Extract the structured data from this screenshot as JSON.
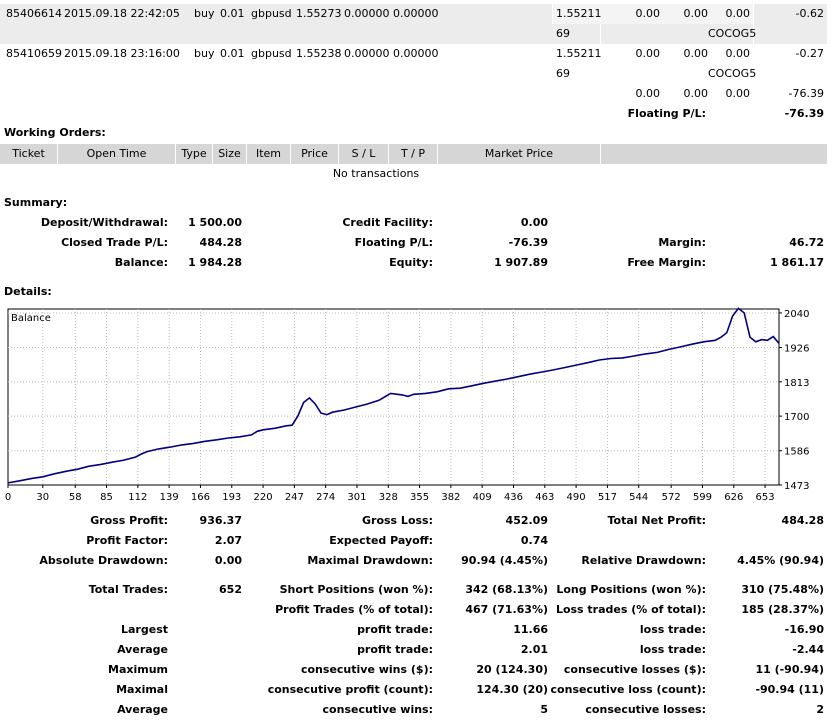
{
  "trades": [
    {
      "ticket": "85406614",
      "open_time": "2015.09.18 22:42:05",
      "type": "buy",
      "size": "0.01",
      "item": "gbpusd",
      "price": "1.55273",
      "sl": "0.00000",
      "tp": "0.00000",
      "market_price": "1.55211",
      "c1": "0.00",
      "c2": "0.00",
      "c3": "0.00",
      "profit": "-0.62",
      "sub_num": "69",
      "comment": "COCOG5"
    },
    {
      "ticket": "85410659",
      "open_time": "2015.09.18 23:16:00",
      "type": "buy",
      "size": "0.01",
      "item": "gbpusd",
      "price": "1.55238",
      "sl": "0.00000",
      "tp": "0.00000",
      "market_price": "1.55211",
      "c1": "0.00",
      "c2": "0.00",
      "c3": "0.00",
      "profit": "-0.27",
      "sub_num": "69",
      "comment": "COCOG5"
    }
  ],
  "totals_row": {
    "c1": "0.00",
    "c2": "0.00",
    "c3": "0.00",
    "profit": "-76.39"
  },
  "floating_row": {
    "label": "Floating P/L:",
    "value": "-76.39"
  },
  "working_orders": {
    "title": "Working Orders:",
    "headers": [
      "Ticket",
      "Open Time",
      "Type",
      "Size",
      "Item",
      "Price",
      "S / L",
      "T / P",
      "Market Price"
    ],
    "empty_text": "No transactions"
  },
  "summary": {
    "title": "Summary:",
    "deposit_label": "Deposit/Withdrawal:",
    "deposit_value": "1 500.00",
    "credit_label": "Credit Facility:",
    "credit_value": "0.00",
    "closed_label": "Closed Trade P/L:",
    "closed_value": "484.28",
    "floating_label": "Floating P/L:",
    "floating_value": "-76.39",
    "margin_label": "Margin:",
    "margin_value": "46.72",
    "balance_label": "Balance:",
    "balance_value": "1 984.28",
    "equity_label": "Equity:",
    "equity_value": "1 907.89",
    "free_margin_label": "Free Margin:",
    "free_margin_value": "1 861.17"
  },
  "details": {
    "title": "Details:"
  },
  "chart_data": {
    "type": "line",
    "title": "Balance",
    "x_ticks": [
      "0",
      "30",
      "58",
      "85",
      "112",
      "139",
      "166",
      "193",
      "220",
      "247",
      "274",
      "301",
      "328",
      "355",
      "382",
      "409",
      "436",
      "463",
      "490",
      "517",
      "544",
      "572",
      "599",
      "626",
      "653"
    ],
    "y_ticks": [
      "2040",
      "1926",
      "1813",
      "1700",
      "1586",
      "1473"
    ],
    "xlim": [
      0,
      665
    ],
    "ylim": [
      1473,
      2053
    ],
    "grid": true,
    "color": "#00007f",
    "series": [
      {
        "x": [
          0,
          10,
          20,
          30,
          40,
          50,
          60,
          70,
          80,
          90,
          100,
          110,
          115,
          120,
          130,
          140,
          150,
          160,
          170,
          180,
          190,
          200,
          210,
          215,
          220,
          230,
          240,
          245,
          250,
          255,
          260,
          265,
          270,
          275,
          280,
          290,
          300,
          310,
          320,
          330,
          340,
          345,
          350,
          360,
          370,
          380,
          390,
          400,
          410,
          420,
          430,
          440,
          450,
          460,
          470,
          480,
          490,
          500,
          510,
          520,
          530,
          540,
          550,
          560,
          570,
          580,
          590,
          600,
          610,
          615,
          620,
          625,
          630,
          635,
          640,
          645,
          650,
          655,
          660,
          665
        ],
        "y": [
          1480,
          1487,
          1494,
          1500,
          1510,
          1518,
          1525,
          1535,
          1541,
          1548,
          1555,
          1565,
          1575,
          1583,
          1592,
          1598,
          1605,
          1610,
          1617,
          1622,
          1628,
          1632,
          1638,
          1650,
          1655,
          1660,
          1668,
          1670,
          1700,
          1745,
          1760,
          1740,
          1710,
          1705,
          1713,
          1720,
          1730,
          1740,
          1752,
          1775,
          1770,
          1765,
          1772,
          1775,
          1780,
          1790,
          1792,
          1800,
          1808,
          1815,
          1822,
          1830,
          1838,
          1845,
          1852,
          1860,
          1868,
          1876,
          1885,
          1890,
          1892,
          1898,
          1905,
          1910,
          1920,
          1928,
          1937,
          1945,
          1950,
          1960,
          1975,
          2030,
          2055,
          2040,
          1960,
          1945,
          1952,
          1950,
          1962,
          1940
        ]
      }
    ]
  },
  "stats": {
    "gross_profit_label": "Gross Profit:",
    "gross_profit": "936.37",
    "gross_loss_label": "Gross Loss:",
    "gross_loss": "452.09",
    "net_profit_label": "Total Net Profit:",
    "net_profit": "484.28",
    "profit_factor_label": "Profit Factor:",
    "profit_factor": "2.07",
    "expected_payoff_label": "Expected Payoff:",
    "expected_payoff": "0.74",
    "abs_dd_label": "Absolute Drawdown:",
    "abs_dd": "0.00",
    "max_dd_label": "Maximal Drawdown:",
    "max_dd": "90.94 (4.45%)",
    "rel_dd_label": "Relative Drawdown:",
    "rel_dd": "4.45% (90.94)",
    "total_trades_label": "Total Trades:",
    "total_trades": "652",
    "short_label": "Short Positions (won %):",
    "short": "342 (68.13%)",
    "long_label": "Long Positions (won %):",
    "long": "310 (75.48%)",
    "profit_trades_label": "Profit Trades (% of total):",
    "profit_trades": "467 (71.63%)",
    "loss_trades_label": "Loss trades (% of total):",
    "loss_trades": "185 (28.37%)",
    "largest_label": "Largest",
    "largest_pt_label": "profit trade:",
    "largest_pt": "11.66",
    "largest_lt_label": "loss trade:",
    "largest_lt": "-16.90",
    "average_label": "Average",
    "average_pt_label": "profit trade:",
    "average_pt": "2.01",
    "average_lt_label": "loss trade:",
    "average_lt": "-2.44",
    "maximum_label": "Maximum",
    "max_cw_label": "consecutive wins ($):",
    "max_cw": "20 (124.30)",
    "max_cl_label": "consecutive losses ($):",
    "max_cl": "11 (-90.94)",
    "maximal_label": "Maximal",
    "max_cp_label": "consecutive profit (count):",
    "max_cp": "124.30 (20)",
    "max_cll_label": "consecutive loss (count):",
    "max_cll": "-90.94 (11)",
    "average2_label": "Average",
    "avg_cw_label": "consecutive wins:",
    "avg_cw": "5",
    "avg_cl_label": "consecutive losses:",
    "avg_cl": "2"
  }
}
